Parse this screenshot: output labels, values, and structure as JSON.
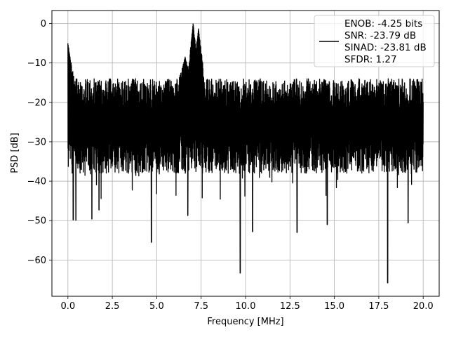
{
  "chart_data": {
    "type": "line",
    "title": "",
    "xlabel": "Frequency [MHz]",
    "ylabel": "PSD [dB]",
    "xlim": [
      -0.9,
      20.9
    ],
    "ylim": [
      -69.2,
      3.3
    ],
    "xticks": [
      0.0,
      2.5,
      5.0,
      7.5,
      10.0,
      12.5,
      15.0,
      17.5,
      20.0
    ],
    "xtick_labels": [
      "0.0",
      "2.5",
      "5.0",
      "7.5",
      "10.0",
      "12.5",
      "15.0",
      "17.5",
      "20.0"
    ],
    "yticks": [
      0,
      -10,
      -20,
      -30,
      -40,
      -50,
      -60
    ],
    "ytick_labels": [
      "0",
      "−10",
      "−20",
      "−30",
      "−40",
      "−50",
      "−60"
    ],
    "grid": true,
    "legend_position": "top-right",
    "legend": [
      "ENOB: -4.25 bits",
      "SNR: -23.79 dB",
      "SINAD: -23.81 dB",
      "SFDR: 1.27"
    ],
    "line_color": "#000000",
    "series": [
      {
        "x_range": [
          0.0,
          20.0
        ],
        "noise_band_upper_db": -14,
        "noise_band_lower_db": -38,
        "peaks": [
          {
            "x": 0.0,
            "y": -5.0
          },
          {
            "x": 6.6,
            "y": -8.5
          },
          {
            "x": 7.05,
            "y": 0.1
          },
          {
            "x": 7.35,
            "y": -1.2
          }
        ],
        "dips": [
          {
            "x": 0.3,
            "y": -49.8
          },
          {
            "x": 0.45,
            "y": -49.9
          },
          {
            "x": 1.35,
            "y": -49.6
          },
          {
            "x": 1.75,
            "y": -47.3
          },
          {
            "x": 4.7,
            "y": -55.5
          },
          {
            "x": 6.75,
            "y": -48.7
          },
          {
            "x": 9.7,
            "y": -63.3
          },
          {
            "x": 10.4,
            "y": -52.8
          },
          {
            "x": 12.9,
            "y": -53.0
          },
          {
            "x": 14.6,
            "y": -51.0
          },
          {
            "x": 18.0,
            "y": -65.8
          },
          {
            "x": 19.15,
            "y": -50.6
          }
        ]
      }
    ]
  }
}
